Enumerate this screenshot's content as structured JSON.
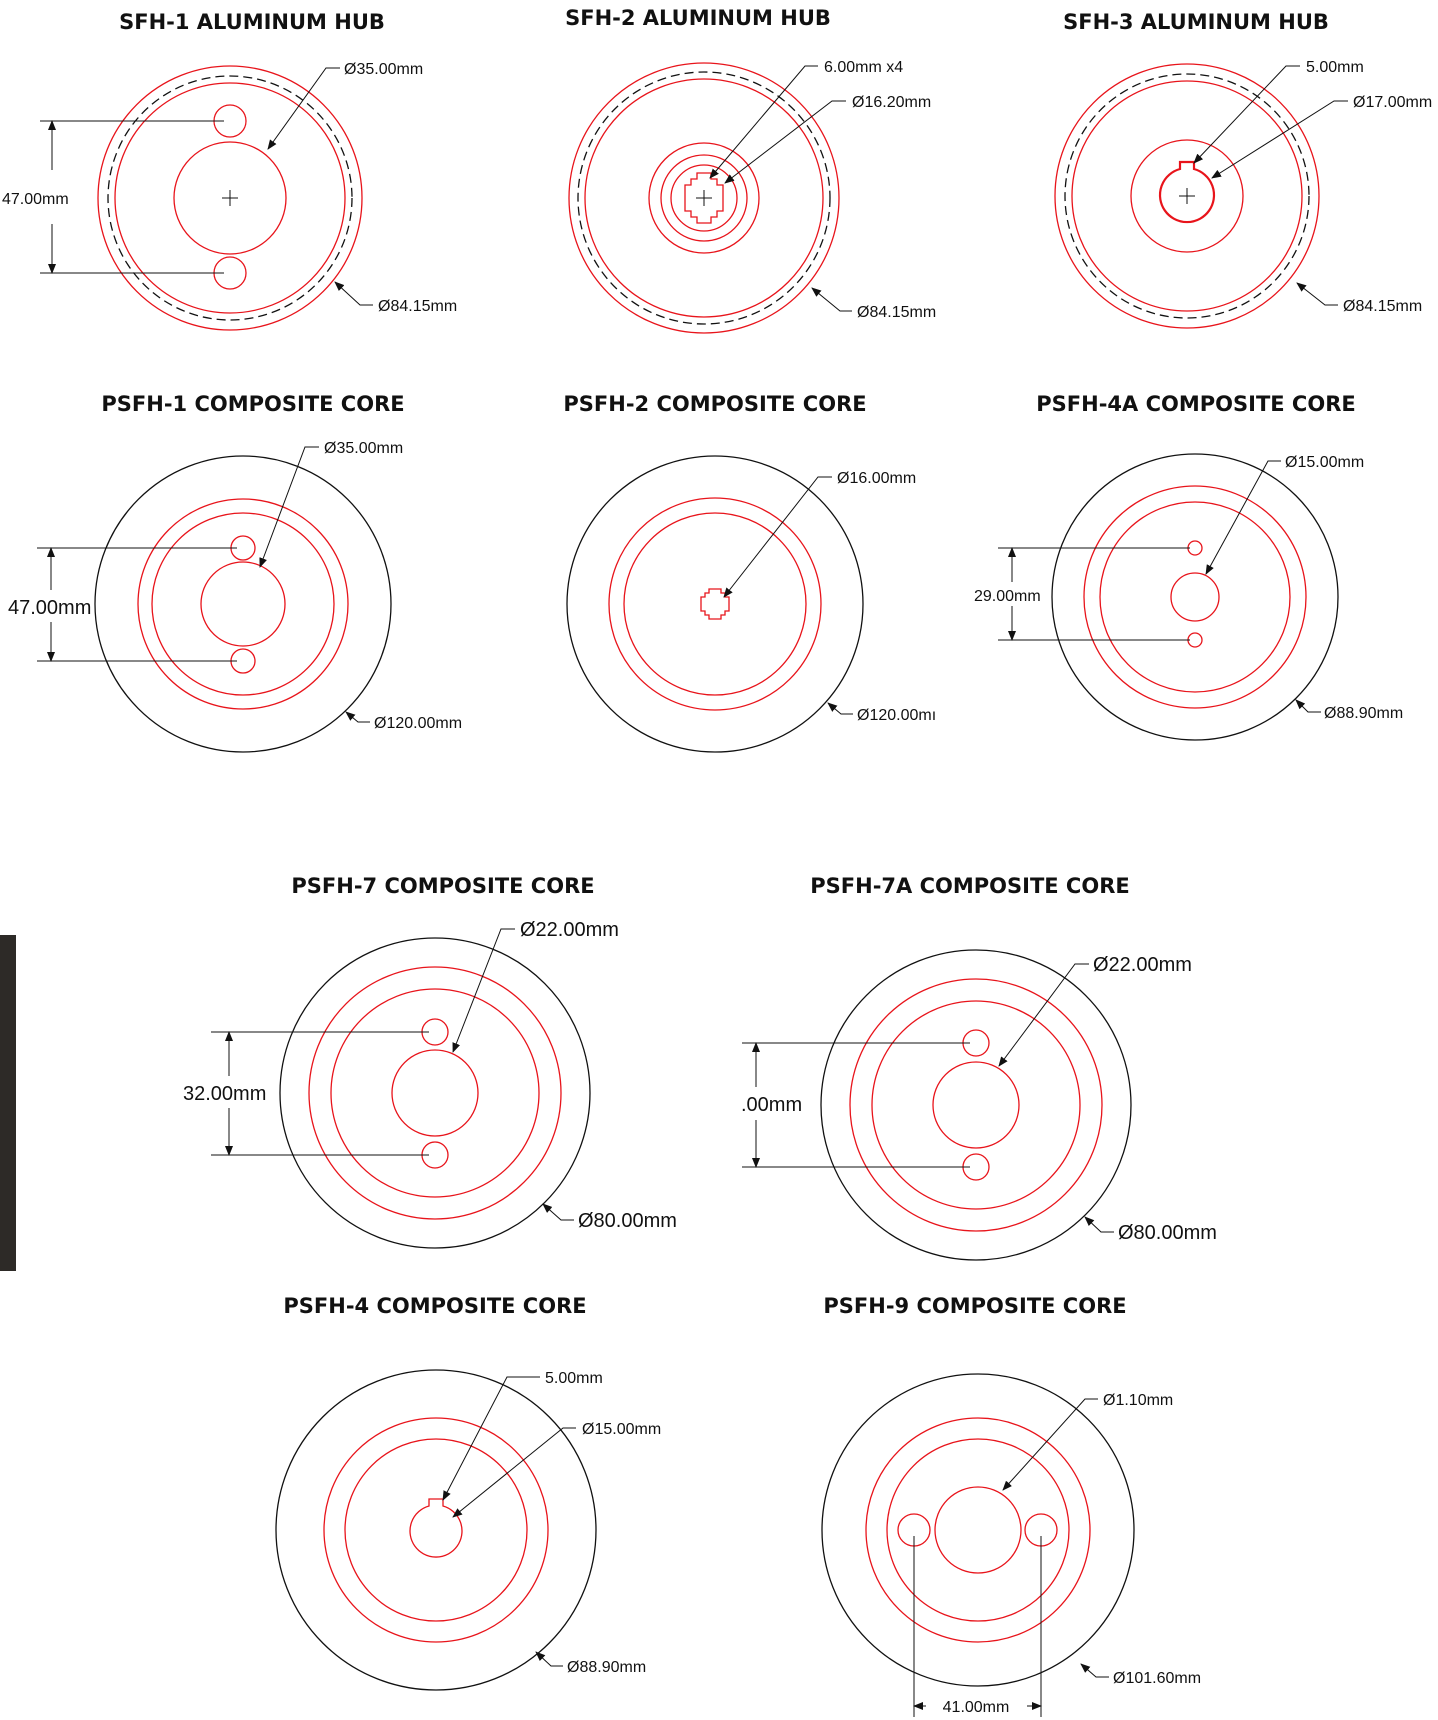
{
  "titles": {
    "sfh1": "SFH-1 ALUMINUM HUB",
    "sfh2": "SFH-2 ALUMINUM HUB",
    "sfh3": "SFH-3 ALUMINUM HUB",
    "psfh1": "PSFH-1 COMPOSITE CORE",
    "psfh2": "PSFH-2 COMPOSITE CORE",
    "psfh4a": "PSFH-4A COMPOSITE CORE",
    "psfh7": "PSFH-7 COMPOSITE CORE",
    "psfh7a": "PSFH-7A COMPOSITE CORE",
    "psfh4": "PSFH-4 COMPOSITE CORE",
    "psfh9": "PSFH-9 COMPOSITE CORE"
  },
  "dims": {
    "sfh1_bore": "Ø35.00mm",
    "sfh1_spacing": "47.00mm",
    "sfh1_outer": "Ø84.15mm",
    "sfh2_slots": "6.00mm x4",
    "sfh2_bore": "Ø16.20mm",
    "sfh2_outer": "Ø84.15mm",
    "sfh3_key": "5.00mm",
    "sfh3_bore": "Ø17.00mm",
    "sfh3_outer": "Ø84.15mm",
    "psfh1_bore": "Ø35.00mm",
    "psfh1_spacing": "47.00mm",
    "psfh1_outer": "Ø120.00mm",
    "psfh2_bore": "Ø16.00mm",
    "psfh2_outer": "Ø120.00mı",
    "psfh4a_bore": "Ø15.00mm",
    "psfh4a_spacing": "29.00mm",
    "psfh4a_outer": "Ø88.90mm",
    "psfh7_bore": "Ø22.00mm",
    "psfh7_spacing": "32.00mm",
    "psfh7_outer": "Ø80.00mm",
    "psfh7a_bore": "Ø22.00mm",
    "psfh7a_spacing": ".00mm",
    "psfh7a_outer": "Ø80.00mm",
    "psfh4_key": "5.00mm",
    "psfh4_bore": "Ø15.00mm",
    "psfh4_outer": "Ø88.90mm",
    "psfh9_hole": "Ø1.10mm",
    "psfh9_outer": "Ø101.60mm",
    "psfh9_spacing": "41.00mm"
  },
  "colors": {
    "line_red": "#e8141b",
    "line_black": "#111111",
    "sidebar": "#2d2a27"
  }
}
